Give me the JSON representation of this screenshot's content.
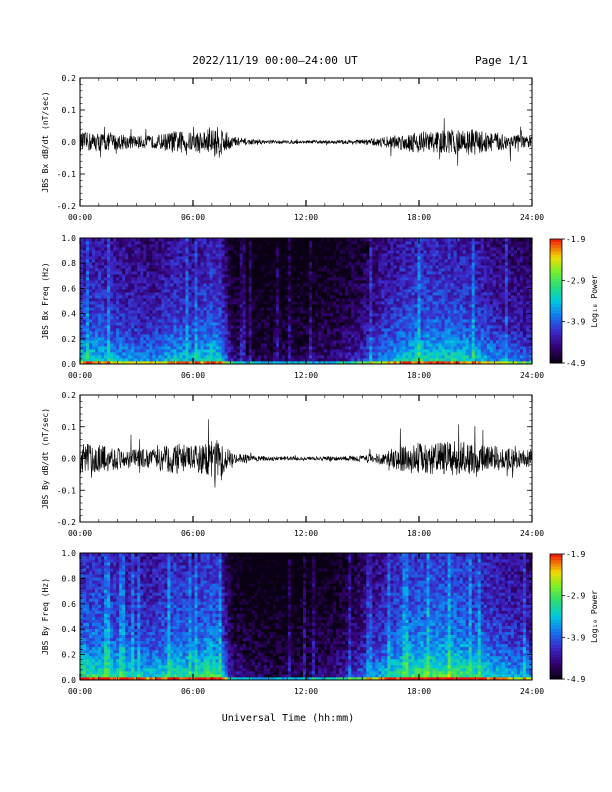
{
  "header": {
    "title": "2022/11/19  00:00–24:00 UT",
    "page": "Page 1/1"
  },
  "x_title": "Universal Time (hh:mm)",
  "chart_data": [
    {
      "type": "line",
      "ylabel": "JBS Bx dB/dt (nT/sec)",
      "xlabel": "",
      "x_ticks": [
        "00:00",
        "06:00",
        "12:00",
        "18:00",
        "24:00"
      ],
      "xlim": [
        0,
        24
      ],
      "ylim": [
        -0.2,
        0.2
      ],
      "y_ticks": [
        "-0.2",
        "-0.1",
        "0.0",
        "0.1",
        "0.2"
      ],
      "envelope": {
        "x_hours": [
          0,
          1,
          2,
          3,
          4,
          5,
          6,
          7,
          7.5,
          8,
          9,
          10,
          11,
          12,
          13,
          14,
          15,
          16,
          17,
          18,
          19,
          20,
          21,
          22,
          23,
          24
        ],
        "amplitude": [
          0.03,
          0.03,
          0.025,
          0.02,
          0.02,
          0.035,
          0.03,
          0.045,
          0.05,
          0.02,
          0.008,
          0.006,
          0.005,
          0.005,
          0.005,
          0.006,
          0.008,
          0.015,
          0.025,
          0.035,
          0.035,
          0.04,
          0.04,
          0.03,
          0.025,
          0.02
        ]
      }
    },
    {
      "type": "heatmap",
      "ylabel": "JBS Bx Freq (Hz)",
      "x_ticks": [
        "00:00",
        "06:00",
        "12:00",
        "18:00",
        "24:00"
      ],
      "xlim": [
        0,
        24
      ],
      "ylim": [
        0.0,
        1.0
      ],
      "y_ticks": [
        "0.0",
        "0.2",
        "0.4",
        "0.6",
        "0.8",
        "1.0"
      ],
      "colorbar": {
        "label": "Log₁₀ Power",
        "ticks": [
          "-1.9",
          "-2.9",
          "-3.9",
          "-4.9"
        ],
        "range": [
          -4.9,
          -1.9
        ]
      },
      "activity": {
        "x_hours": [
          0,
          1,
          2,
          3,
          4,
          5,
          6,
          7,
          7.5,
          8,
          9,
          10,
          11,
          12,
          13,
          14,
          15,
          16,
          17,
          18,
          19,
          20,
          21,
          22,
          23,
          24
        ],
        "level": [
          0.55,
          0.55,
          0.5,
          0.45,
          0.45,
          0.55,
          0.5,
          0.6,
          0.55,
          0.2,
          0.1,
          0.1,
          0.1,
          0.12,
          0.15,
          0.2,
          0.3,
          0.45,
          0.55,
          0.6,
          0.6,
          0.6,
          0.55,
          0.45,
          0.4,
          0.35
        ]
      }
    },
    {
      "type": "line",
      "ylabel": "JBS By dB/dt (nT/sec)",
      "xlabel": "",
      "x_ticks": [
        "00:00",
        "06:00",
        "12:00",
        "18:00",
        "24:00"
      ],
      "xlim": [
        0,
        24
      ],
      "ylim": [
        -0.2,
        0.2
      ],
      "y_ticks": [
        "-0.2",
        "-0.1",
        "0.0",
        "0.1",
        "0.2"
      ],
      "envelope": {
        "x_hours": [
          0,
          1,
          2,
          3,
          4,
          5,
          6,
          7,
          7.5,
          8,
          9,
          10,
          11,
          12,
          13,
          14,
          15,
          16,
          17,
          18,
          19,
          20,
          21,
          22,
          23,
          24
        ],
        "amplitude": [
          0.05,
          0.045,
          0.035,
          0.03,
          0.03,
          0.05,
          0.04,
          0.06,
          0.06,
          0.02,
          0.01,
          0.007,
          0.006,
          0.005,
          0.006,
          0.007,
          0.01,
          0.02,
          0.04,
          0.05,
          0.05,
          0.055,
          0.05,
          0.04,
          0.035,
          0.03
        ]
      }
    },
    {
      "type": "heatmap",
      "ylabel": "JBS By Freq (Hz)",
      "x_ticks": [
        "00:00",
        "06:00",
        "12:00",
        "18:00",
        "24:00"
      ],
      "xlim": [
        0,
        24
      ],
      "ylim": [
        0.0,
        1.0
      ],
      "y_ticks": [
        "0.0",
        "0.2",
        "0.4",
        "0.6",
        "0.8",
        "1.0"
      ],
      "colorbar": {
        "label": "Log₁₀ Power",
        "ticks": [
          "-1.9",
          "-2.9",
          "-3.9",
          "-4.9"
        ],
        "range": [
          -4.9,
          -1.9
        ]
      },
      "activity": {
        "x_hours": [
          0,
          1,
          2,
          3,
          4,
          5,
          6,
          7,
          7.5,
          8,
          9,
          10,
          11,
          12,
          13,
          14,
          15,
          16,
          17,
          18,
          19,
          20,
          21,
          22,
          23,
          24
        ],
        "level": [
          0.65,
          0.65,
          0.6,
          0.55,
          0.55,
          0.65,
          0.6,
          0.7,
          0.6,
          0.2,
          0.12,
          0.1,
          0.1,
          0.12,
          0.15,
          0.22,
          0.35,
          0.5,
          0.65,
          0.7,
          0.7,
          0.7,
          0.65,
          0.55,
          0.5,
          0.45
        ]
      }
    }
  ]
}
